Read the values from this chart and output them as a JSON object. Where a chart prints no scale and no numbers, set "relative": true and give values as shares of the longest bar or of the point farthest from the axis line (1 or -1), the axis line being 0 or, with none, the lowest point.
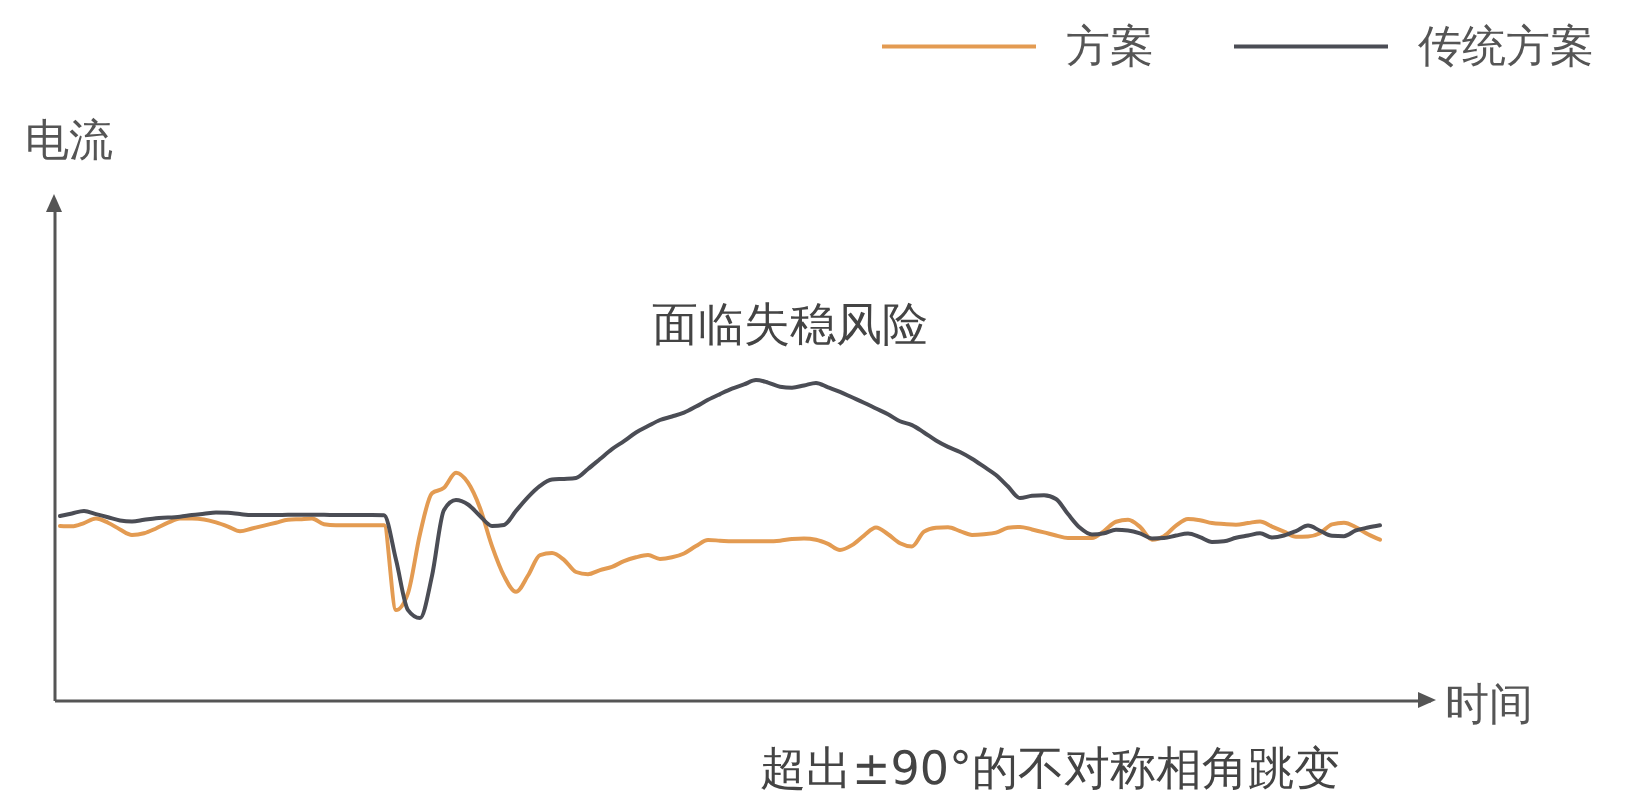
{
  "chart_data": {
    "type": "line",
    "relative": true,
    "xlabel": "时间",
    "ylabel": "电流",
    "legend": "top right",
    "annotations": [
      "面临失稳风险",
      "超出±90°的不对称相角跳变"
    ],
    "categories": [
      null,
      null,
      null,
      null,
      null,
      null,
      null,
      null,
      null,
      null,
      null,
      null,
      null,
      null,
      null,
      null,
      null,
      null,
      null,
      null,
      null,
      null,
      null,
      null,
      null,
      null,
      null,
      null,
      null,
      null,
      null,
      null,
      null,
      null,
      null,
      null,
      null,
      null,
      null,
      null,
      null,
      null,
      null,
      null,
      null,
      null,
      null,
      null,
      null,
      null,
      null,
      null,
      null,
      null,
      null,
      null,
      null,
      null,
      null,
      null,
      null,
      null,
      null,
      null,
      null,
      null,
      null,
      null,
      null,
      null,
      null,
      null,
      null,
      null,
      null,
      null,
      null,
      null,
      null,
      null,
      null,
      null,
      null,
      null,
      null,
      null,
      null,
      null,
      null,
      null,
      null,
      null,
      null,
      null,
      null,
      null,
      null,
      null,
      null,
      null,
      null,
      null,
      null,
      null,
      null,
      null,
      null,
      null,
      null,
      null,
      null
    ],
    "series": [
      {
        "name": "方案",
        "color": "#e39b52",
        "values": [
          0.544,
          0.543,
          0.553,
          0.567,
          0.554,
          0.533,
          0.516,
          0.521,
          0.536,
          0.554,
          0.567,
          0.567,
          0.564,
          0.555,
          0.542,
          0.527,
          0.536,
          0.545,
          0.554,
          0.563,
          0.565,
          0.567,
          0.549,
          0.546,
          0.546,
          0.546,
          0.546,
          0.546,
          0.281,
          0.334,
          0.519,
          0.646,
          0.663,
          0.71,
          0.679,
          0.6,
          0.481,
          0.388,
          0.338,
          0.389,
          0.453,
          0.459,
          0.438,
          0.4,
          0.393,
          0.406,
          0.416,
          0.434,
          0.446,
          0.453,
          0.441,
          0.446,
          0.458,
          0.481,
          0.5,
          0.498,
          0.496,
          0.496,
          0.496,
          0.496,
          0.498,
          0.503,
          0.505,
          0.501,
          0.488,
          0.469,
          0.484,
          0.514,
          0.539,
          0.518,
          0.49,
          0.48,
          0.526,
          0.538,
          0.54,
          0.528,
          0.516,
          0.518,
          0.523,
          0.538,
          0.541,
          0.533,
          0.524,
          0.514,
          0.506,
          0.506,
          0.506,
          0.528,
          0.557,
          0.563,
          0.541,
          0.501,
          0.512,
          0.545,
          0.566,
          0.562,
          0.553,
          0.55,
          0.548,
          0.553,
          0.558,
          0.542,
          0.526,
          0.51,
          0.511,
          0.521,
          0.549,
          0.554,
          0.54,
          0.518,
          0.501
        ]
      },
      {
        "name": "传统方案",
        "color": "#4b4d55",
        "values": [
          0.575,
          0.583,
          0.591,
          0.581,
          0.571,
          0.561,
          0.558,
          0.563,
          0.568,
          0.57,
          0.573,
          0.578,
          0.582,
          0.586,
          0.585,
          0.581,
          0.578,
          0.578,
          0.578,
          0.579,
          0.579,
          0.579,
          0.579,
          0.578,
          0.578,
          0.578,
          0.578,
          0.577,
          0.438,
          0.281,
          0.256,
          0.388,
          0.594,
          0.625,
          0.611,
          0.575,
          0.544,
          0.547,
          0.591,
          0.634,
          0.669,
          0.689,
          0.691,
          0.694,
          0.722,
          0.753,
          0.784,
          0.809,
          0.836,
          0.856,
          0.875,
          0.886,
          0.898,
          0.917,
          0.938,
          0.956,
          0.973,
          0.986,
          1,
          0.992,
          0.979,
          0.976,
          0.983,
          0.991,
          0.977,
          0.963,
          0.946,
          0.929,
          0.911,
          0.893,
          0.871,
          0.859,
          0.836,
          0.811,
          0.791,
          0.775,
          0.754,
          0.729,
          0.703,
          0.667,
          0.631,
          0.638,
          0.64,
          0.628,
          0.581,
          0.538,
          0.517,
          0.521,
          0.532,
          0.53,
          0.521,
          0.505,
          0.506,
          0.514,
          0.52,
          0.509,
          0.494,
          0.496,
          0.507,
          0.514,
          0.521,
          0.508,
          0.514,
          0.528,
          0.545,
          0.529,
          0.513,
          0.512,
          0.53,
          0.539,
          0.546
        ]
      }
    ]
  }
}
